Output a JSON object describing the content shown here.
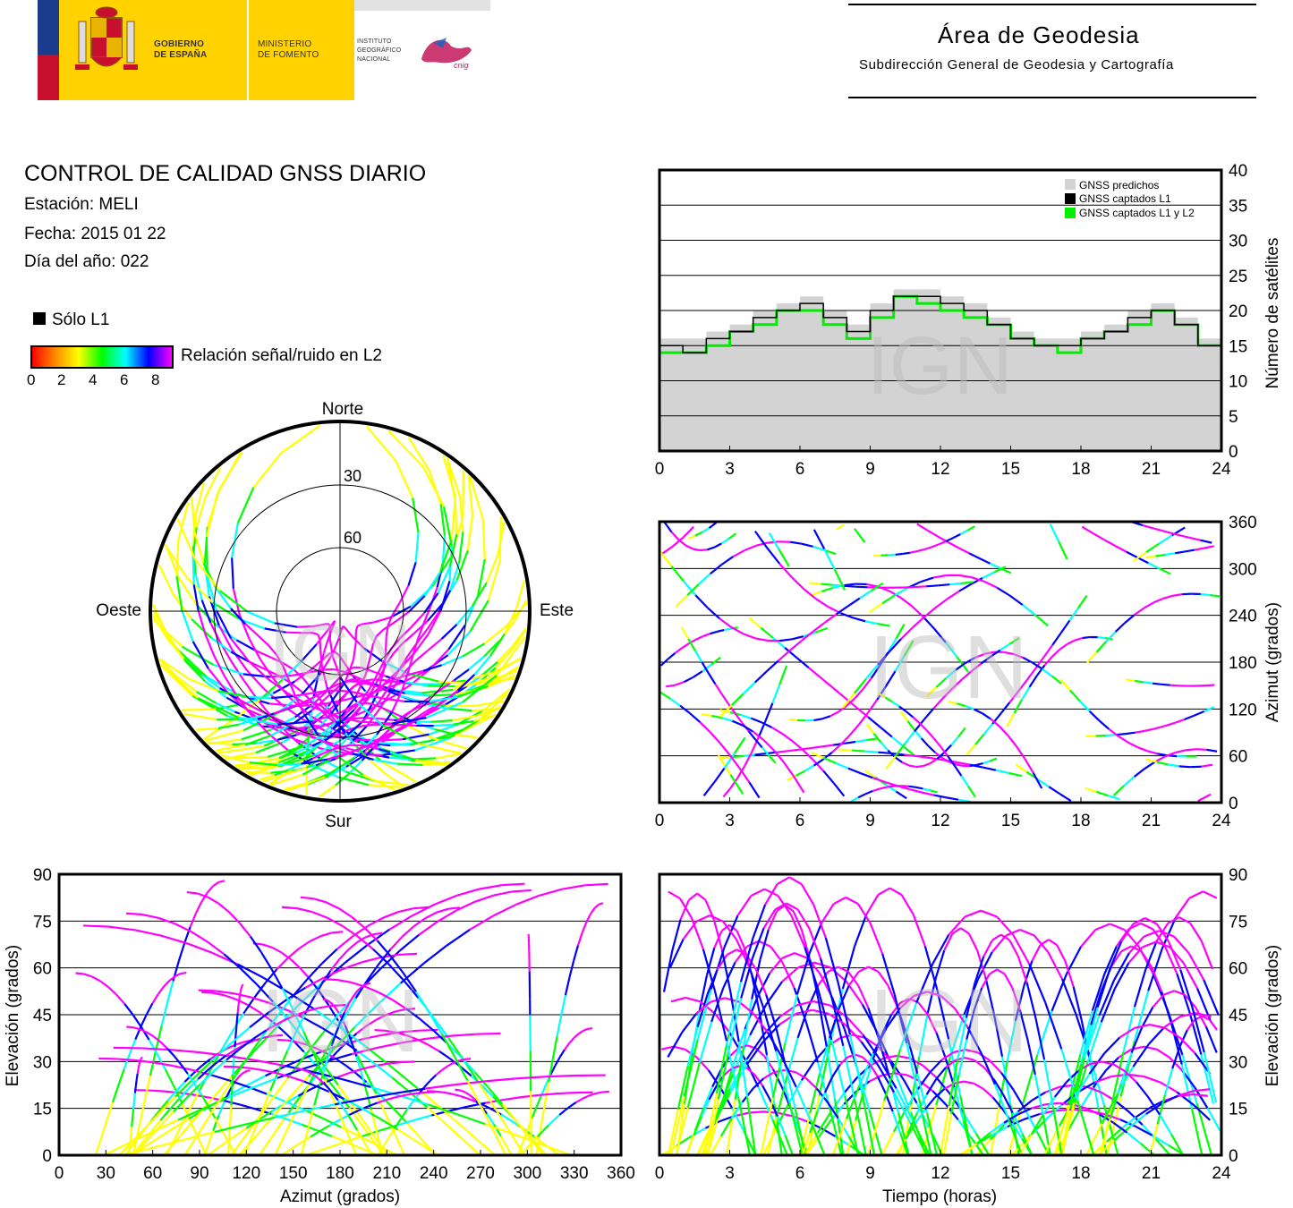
{
  "header": {
    "gov_line1": "GOBIERNO",
    "gov_line2": "DE ESPAÑA",
    "min_line1": "MINISTERIO",
    "min_line2": "DE FOMENTO",
    "ign_line1": "INSTITUTO",
    "ign_line2": "GEOGRÁFICO",
    "ign_line3": "NACIONAL",
    "cnig": "cnig",
    "area_title": "Área de Geodesia",
    "area_subtitle": "Subdirección General de Geodesia y Cartografía"
  },
  "info": {
    "title": "CONTROL DE CALIDAD GNSS DIARIO",
    "station": "Estación: MELI",
    "date": "Fecha: 2015 01 22",
    "doy": "Día del año: 022",
    "solo_l1": "Sólo L1",
    "colorbar_label": "Relación señal/ruido en L2",
    "colorbar_ticks": [
      "0",
      "2",
      "4",
      "6",
      "8"
    ]
  },
  "watermark": "IGN",
  "colors": {
    "predicted": "#d3d3d3",
    "l1": "#000000",
    "l1l2": "#00ee00",
    "colormap": [
      "#ff0000",
      "#ff8c00",
      "#ffff00",
      "#00ff00",
      "#00ffff",
      "#0000ff",
      "#ff00ff"
    ]
  },
  "chart_data": [
    {
      "type": "line",
      "id": "satellites",
      "ylabel": "Número de satélites",
      "ylim": [
        0,
        40
      ],
      "yticks": [
        0,
        5,
        10,
        15,
        20,
        25,
        30,
        35,
        40
      ],
      "xlim": [
        0,
        24
      ],
      "xticks": [
        0,
        3,
        6,
        9,
        12,
        15,
        18,
        21,
        24
      ],
      "grid": true,
      "legend": "top-right",
      "series": [
        {
          "name": "GNSS predichos",
          "x": [
            0,
            1,
            2,
            3,
            4,
            5,
            6,
            7,
            8,
            9,
            10,
            11,
            12,
            13,
            14,
            15,
            16,
            17,
            18,
            19,
            20,
            21,
            22,
            23,
            24
          ],
          "values": [
            16,
            16,
            17,
            18,
            20,
            21,
            22,
            20,
            18,
            21,
            23,
            23,
            22,
            21,
            19,
            17,
            16,
            16,
            17,
            18,
            20,
            21,
            19,
            16,
            16
          ]
        },
        {
          "name": "GNSS captados L1",
          "x": [
            0,
            1,
            2,
            3,
            4,
            5,
            6,
            7,
            8,
            9,
            10,
            11,
            12,
            13,
            14,
            15,
            16,
            17,
            18,
            19,
            20,
            21,
            22,
            23,
            24
          ],
          "values": [
            15,
            14,
            16,
            17,
            19,
            20,
            21,
            19,
            17,
            20,
            22,
            22,
            21,
            20,
            18,
            16,
            15,
            15,
            16,
            17,
            19,
            20,
            18,
            15,
            15
          ]
        },
        {
          "name": "GNSS captados L1 y L2",
          "x": [
            0,
            1,
            2,
            3,
            4,
            5,
            6,
            7,
            8,
            9,
            10,
            11,
            12,
            13,
            14,
            15,
            16,
            17,
            18,
            19,
            20,
            21,
            22,
            23,
            24
          ],
          "values": [
            14,
            14,
            15,
            17,
            18,
            20,
            20,
            18,
            16,
            19,
            22,
            21,
            20,
            19,
            18,
            16,
            15,
            14,
            16,
            17,
            18,
            20,
            18,
            15,
            15
          ]
        }
      ]
    },
    {
      "type": "scatter",
      "id": "azimuth-time",
      "ylabel": "Azimut (grados)",
      "ylim": [
        0,
        360
      ],
      "yticks": [
        0,
        60,
        120,
        180,
        240,
        300,
        360
      ],
      "xlim": [
        0,
        24
      ],
      "xticks": [
        0,
        3,
        6,
        9,
        12,
        15,
        18,
        21,
        24
      ],
      "grid": true
    },
    {
      "type": "scatter",
      "id": "skyplot",
      "labels": {
        "north": "Norte",
        "south": "Sur",
        "east": "Este",
        "west": "Oeste"
      },
      "rings": [
        "30",
        "60"
      ]
    },
    {
      "type": "scatter",
      "id": "elevation-azimuth",
      "xlabel": "Azimut (grados)",
      "ylabel": "Elevación (grados)",
      "xlim": [
        0,
        360
      ],
      "xticks": [
        0,
        30,
        60,
        90,
        120,
        150,
        180,
        210,
        240,
        270,
        300,
        330,
        360
      ],
      "ylim": [
        0,
        90
      ],
      "yticks": [
        0,
        15,
        30,
        45,
        60,
        75,
        90
      ],
      "grid": true
    },
    {
      "type": "scatter",
      "id": "elevation-time",
      "xlabel": "Tiempo (horas)",
      "ylabel": "Elevación (grados)",
      "xlim": [
        0,
        24
      ],
      "xticks": [
        0,
        3,
        6,
        9,
        12,
        15,
        18,
        21,
        24
      ],
      "ylim": [
        0,
        90
      ],
      "yticks": [
        0,
        15,
        30,
        45,
        60,
        75,
        90
      ],
      "grid": true
    }
  ]
}
